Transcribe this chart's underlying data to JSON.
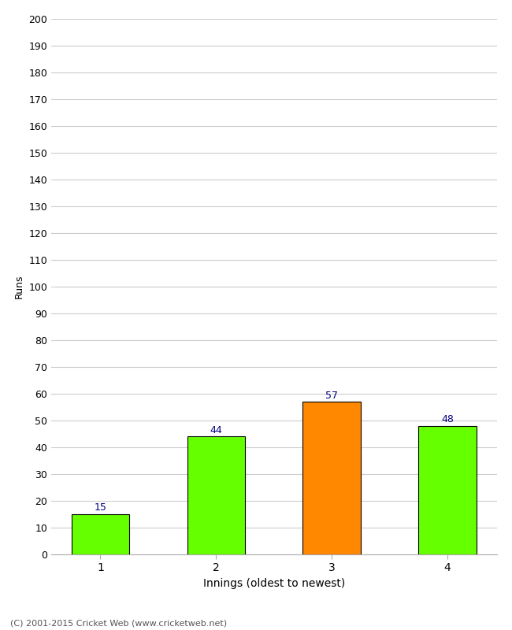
{
  "categories": [
    "1",
    "2",
    "3",
    "4"
  ],
  "values": [
    15,
    44,
    57,
    48
  ],
  "bar_colors": [
    "#66ff00",
    "#66ff00",
    "#ff8800",
    "#66ff00"
  ],
  "bar_edge_colors": [
    "#000000",
    "#000000",
    "#000000",
    "#000000"
  ],
  "xlabel": "Innings (oldest to newest)",
  "ylabel": "Runs",
  "ylim": [
    0,
    200
  ],
  "yticks": [
    0,
    10,
    20,
    30,
    40,
    50,
    60,
    70,
    80,
    90,
    100,
    110,
    120,
    130,
    140,
    150,
    160,
    170,
    180,
    190,
    200
  ],
  "label_color": "#000080",
  "background_color": "#ffffff",
  "grid_color": "#cccccc",
  "footer": "(C) 2001-2015 Cricket Web (www.cricketweb.net)",
  "bar_width": 0.5
}
